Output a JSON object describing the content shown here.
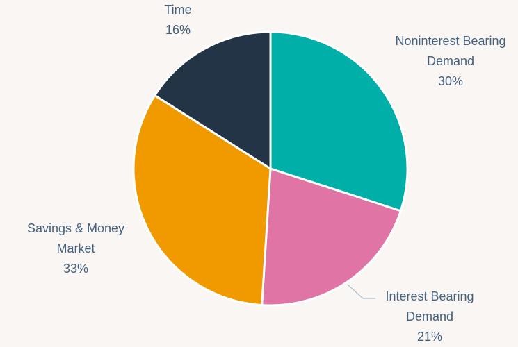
{
  "chart_data": {
    "type": "pie",
    "categories": [
      "Noninterest Bearing Demand",
      "Interest Bearing Demand",
      "Savings & Money Market",
      "Time"
    ],
    "values": [
      30,
      21,
      33,
      16
    ],
    "value_labels": [
      "30%",
      "21%",
      "33%",
      "16%"
    ],
    "colors": [
      "#00b0a8",
      "#e074a4",
      "#f09a00",
      "#243447"
    ]
  }
}
